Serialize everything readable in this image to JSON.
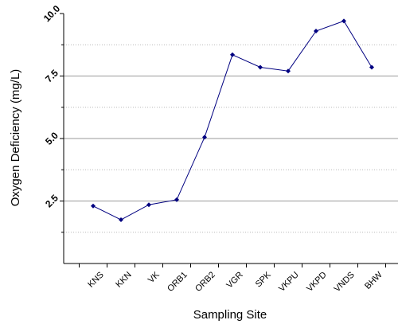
{
  "chart_data": {
    "type": "line",
    "title": "",
    "xlabel": "Sampling Site",
    "ylabel": "Oxygen Deficiency (mg/L)",
    "categories": [
      "KNS",
      "KKN",
      "VK",
      "ORB1",
      "ORB2",
      "VGR",
      "SPK",
      "VKPU",
      "VKPD",
      "VNDS",
      "BHW"
    ],
    "series": [
      {
        "name": "",
        "values": [
          2.3,
          1.75,
          2.35,
          2.55,
          5.05,
          8.35,
          7.85,
          7.7,
          9.3,
          9.7,
          7.85
        ],
        "color": "#000080",
        "marker": "diamond"
      }
    ],
    "ylim": [
      0,
      10
    ],
    "yticks": [
      2.5,
      5.0,
      7.5,
      10.0
    ],
    "ytick_labels": [
      "2.5",
      "5.0",
      "7.5",
      "10.0"
    ],
    "y_minor_step": 1.25,
    "grid": true,
    "legend": "none"
  }
}
